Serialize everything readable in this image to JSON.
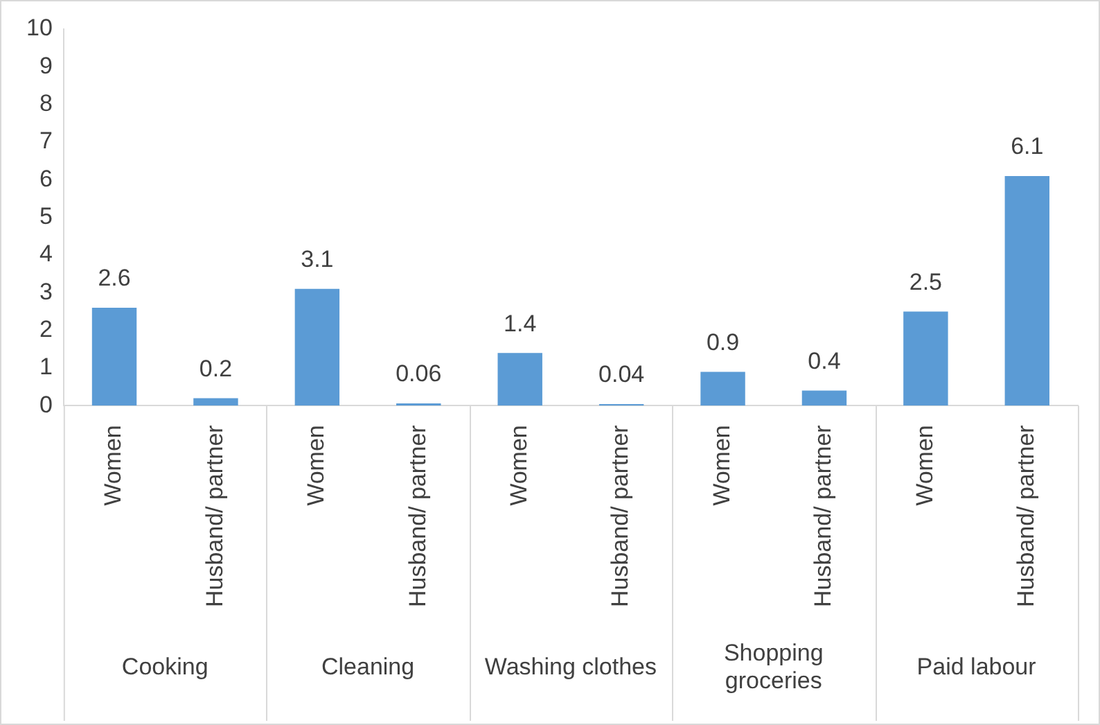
{
  "chart_data": {
    "type": "bar",
    "categories": [
      "Women",
      "Husband/ partner",
      "Women",
      "Husband/ partner",
      "Women",
      "Husband/ partner",
      "Women",
      "Husband/ partner",
      "Women",
      "Husband/ partner"
    ],
    "values": [
      2.6,
      0.2,
      3.1,
      0.06,
      1.4,
      0.04,
      0.9,
      0.4,
      2.5,
      6.1
    ],
    "color": "#5b9bd5",
    "ylim": [
      0,
      10
    ],
    "yticks": [
      0,
      1,
      2,
      3,
      4,
      5,
      6,
      7,
      8,
      9,
      10
    ],
    "grid": false,
    "data_labels": true,
    "annotations": [
      "Cooking",
      "Cleaning",
      "Washing clothes",
      "Shopping groceries",
      "Paid labour"
    ]
  }
}
